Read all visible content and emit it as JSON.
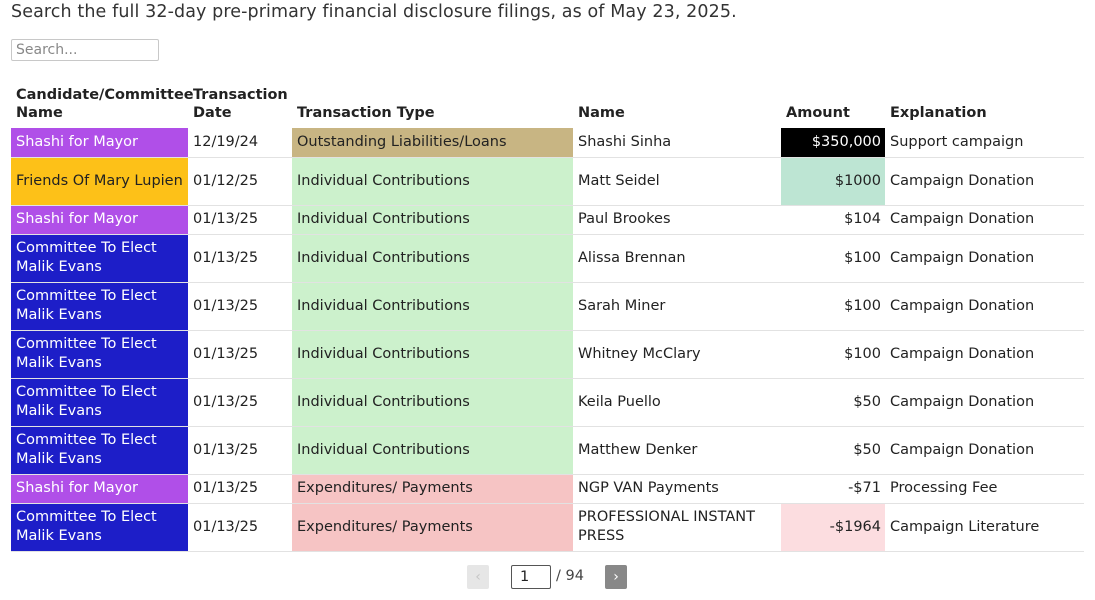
{
  "intro": "Search the full 32-day pre-primary financial disclosure filings, as of May 23, 2025.",
  "search": {
    "placeholder": "Search..."
  },
  "headers": [
    "Candidate/Committee Name",
    "Transaction Date",
    "Transaction Type",
    "Name",
    "Amount",
    "Explanation"
  ],
  "rows": [
    {
      "committee": "Shashi for Mayor",
      "date": "12/19/24",
      "type": "Outstanding Liabilities/Loans",
      "name": "Shashi Sinha",
      "amount": "$350,000",
      "explanation": "Support campaign"
    },
    {
      "committee": "Friends Of Mary Lupien",
      "date": "01/12/25",
      "type": "Individual Contributions",
      "name": "Matt Seidel",
      "amount": "$1000",
      "explanation": "Campaign Donation"
    },
    {
      "committee": "Shashi for Mayor",
      "date": "01/13/25",
      "type": "Individual Contributions",
      "name": "Paul Brookes",
      "amount": "$104",
      "explanation": "Campaign Donation"
    },
    {
      "committee": "Committee To Elect Malik Evans",
      "date": "01/13/25",
      "type": "Individual Contributions",
      "name": "Alissa Brennan",
      "amount": "$100",
      "explanation": "Campaign Donation"
    },
    {
      "committee": "Committee To Elect Malik Evans",
      "date": "01/13/25",
      "type": "Individual Contributions",
      "name": "Sarah Miner",
      "amount": "$100",
      "explanation": "Campaign Donation"
    },
    {
      "committee": "Committee To Elect Malik Evans",
      "date": "01/13/25",
      "type": "Individual Contributions",
      "name": "Whitney McClary",
      "amount": "$100",
      "explanation": "Campaign Donation"
    },
    {
      "committee": "Committee To Elect Malik Evans",
      "date": "01/13/25",
      "type": "Individual Contributions",
      "name": "Keila Puello",
      "amount": "$50",
      "explanation": "Campaign Donation"
    },
    {
      "committee": "Committee To Elect Malik Evans",
      "date": "01/13/25",
      "type": "Individual Contributions",
      "name": "Matthew Denker",
      "amount": "$50",
      "explanation": "Campaign Donation"
    },
    {
      "committee": "Shashi for Mayor",
      "date": "01/13/25",
      "type": "Expenditures/ Payments",
      "name": "NGP VAN Payments",
      "amount": "-$71",
      "explanation": "Processing Fee"
    },
    {
      "committee": "Committee To Elect Malik Evans",
      "date": "01/13/25",
      "type": "Expenditures/ Payments",
      "name": "PROFESSIONAL INSTANT PRESS",
      "amount": "-$1964",
      "explanation": "Campaign Literature"
    }
  ],
  "pagination": {
    "prev_label": "‹",
    "next_label": "›",
    "current_page": "1",
    "total": "/ 94"
  },
  "colors": {
    "shashi": "#b04fe8",
    "friends_lupien": "#fdc118",
    "malik_evans": "#1d1ec8",
    "loans": "#c8b583",
    "contributions": "#ccf1cc",
    "expenditures": "#f6c4c4"
  }
}
